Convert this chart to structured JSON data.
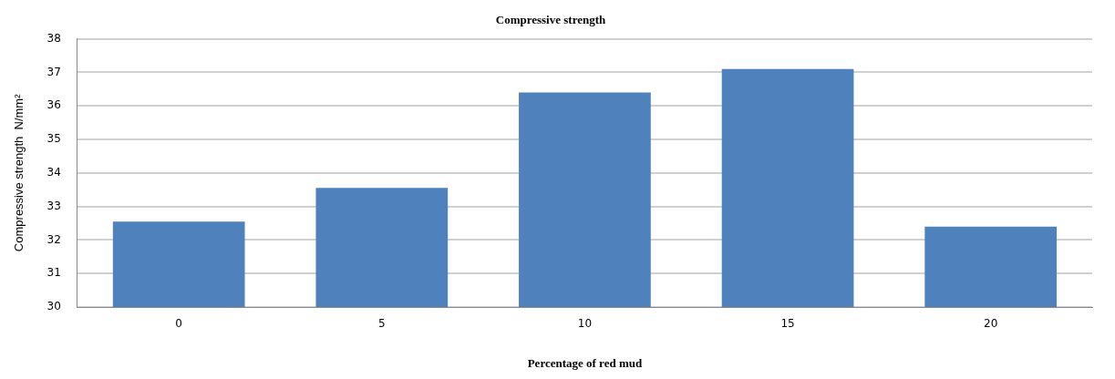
{
  "chart_data": {
    "type": "bar",
    "title": "Compressive strength",
    "xlabel": "Percentage of red mud",
    "ylabel": "Compressive strength  N/mm²",
    "categories": [
      "0",
      "5",
      "10",
      "15",
      "20"
    ],
    "values": [
      32.55,
      33.55,
      36.4,
      37.1,
      32.4
    ],
    "color": "#4f81bd",
    "ylim": [
      30,
      38
    ],
    "yticks": [
      30,
      31,
      32,
      33,
      34,
      35,
      36,
      37,
      38
    ],
    "grid": "y",
    "legend": false
  }
}
